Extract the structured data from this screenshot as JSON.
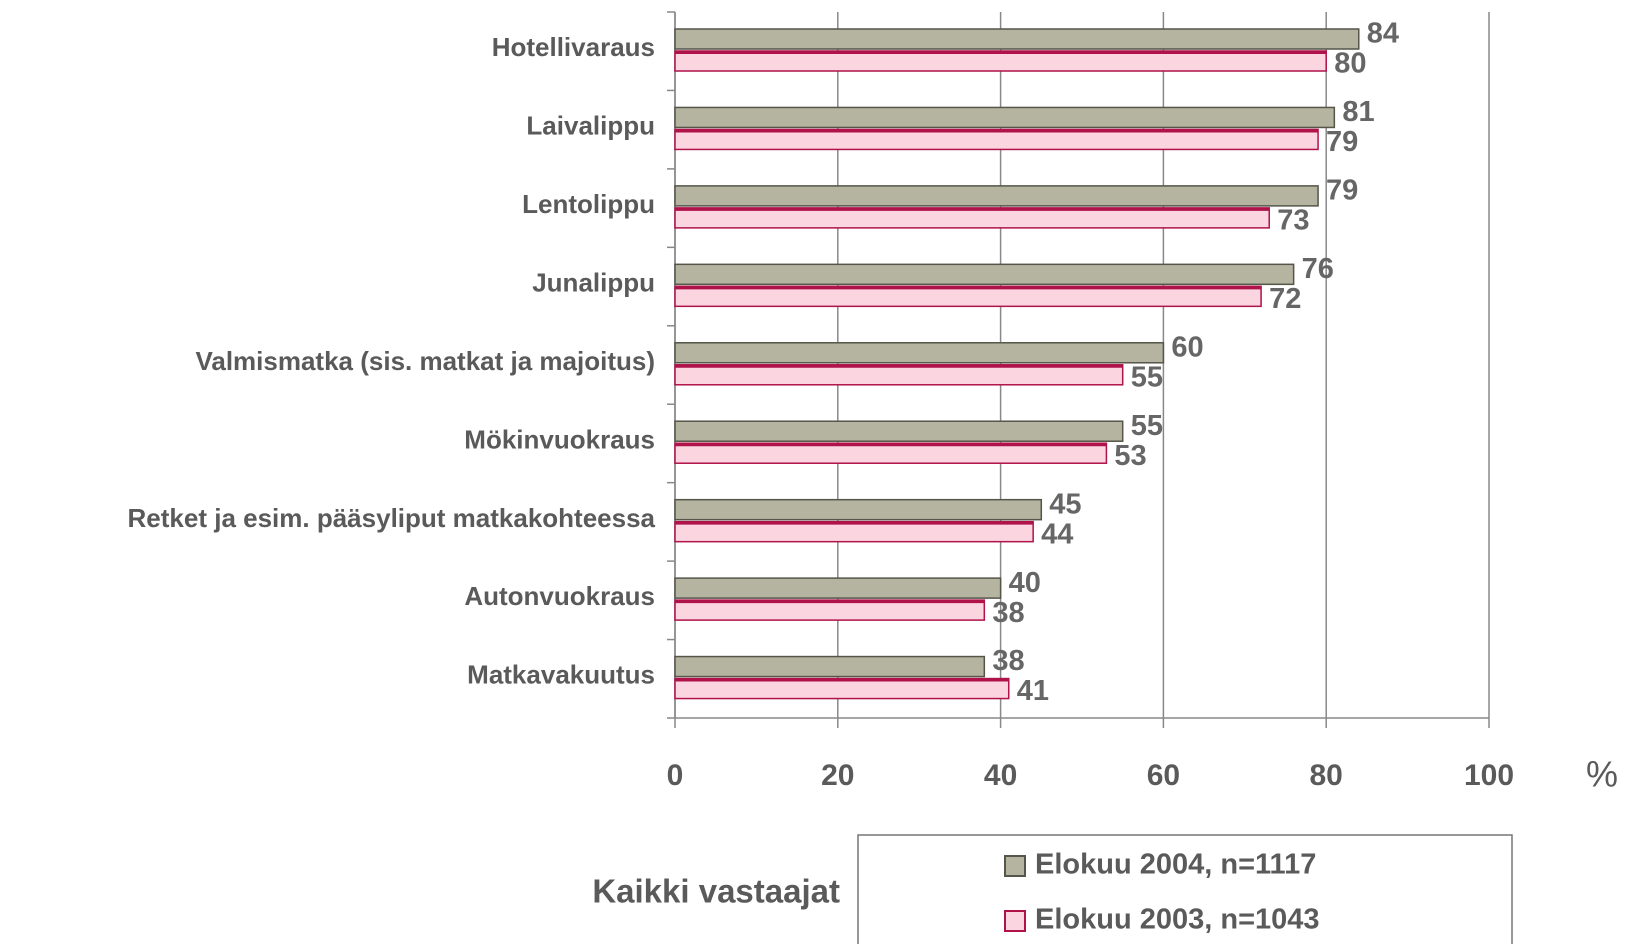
{
  "chart_data": {
    "type": "hbar",
    "categories": [
      "Hotellivaraus",
      "Laivalippu",
      "Lentolippu",
      "Junalippu",
      "Valmismatka (sis. matkat ja majoitus)",
      "Mökinvuokraus",
      "Retket ja esim. pääsyliput matkakohteessa",
      "Autonvuokraus",
      "Matkavakuutus"
    ],
    "series": [
      {
        "name": "Elokuu 2004, n=1117",
        "color": "#b4b4a0",
        "values": [
          84,
          81,
          79,
          76,
          60,
          55,
          45,
          40,
          38
        ]
      },
      {
        "name": "Elokuu 2003, n=1043",
        "color": "#fbd5e0",
        "values": [
          80,
          79,
          73,
          72,
          55,
          53,
          44,
          38,
          41
        ]
      }
    ],
    "xlabel": "%",
    "legend_title": "Kaikki vastaajat",
    "xlim": [
      0,
      100
    ],
    "xticks": [
      0,
      20,
      40,
      60,
      80,
      100
    ],
    "grid": true,
    "legend": "bottom"
  }
}
